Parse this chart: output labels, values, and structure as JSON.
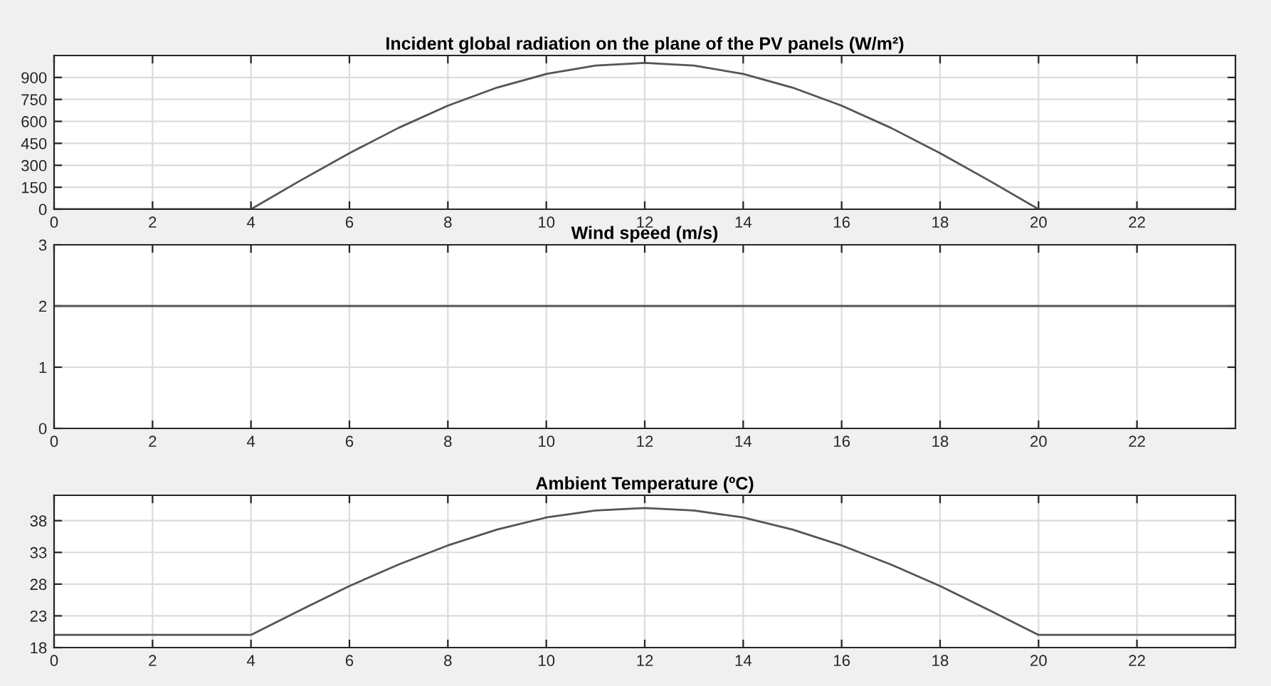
{
  "chart_data": [
    {
      "type": "line",
      "title": "Incident global radiation on the plane of the PV panels (W/m²)",
      "x": [
        0,
        1,
        2,
        3,
        4,
        5,
        6,
        7,
        8,
        9,
        10,
        11,
        12,
        13,
        14,
        15,
        16,
        17,
        18,
        19,
        20,
        21,
        22,
        23,
        24
      ],
      "series": [
        {
          "color": "#555555",
          "values": [
            0,
            0,
            0,
            0,
            0,
            195,
            383,
            556,
            707,
            831,
            924,
            981,
            1000,
            981,
            924,
            831,
            707,
            556,
            383,
            195,
            0,
            0,
            0,
            0,
            0
          ]
        }
      ],
      "xlim": [
        0,
        24
      ],
      "xticks": [
        0,
        2,
        4,
        6,
        8,
        10,
        12,
        14,
        16,
        18,
        20,
        22
      ],
      "ylim": [
        0,
        1050
      ],
      "yticks": [
        0,
        150,
        300,
        450,
        600,
        750,
        900
      ],
      "grid": true
    },
    {
      "type": "line",
      "title": "Wind speed (m/s)",
      "x": [
        0,
        24
      ],
      "series": [
        {
          "color": "#555555",
          "values": [
            2,
            2
          ]
        }
      ],
      "xlim": [
        0,
        24
      ],
      "xticks": [
        0,
        2,
        4,
        6,
        8,
        10,
        12,
        14,
        16,
        18,
        20,
        22
      ],
      "ylim": [
        0,
        3
      ],
      "yticks": [
        0,
        1,
        2,
        3
      ],
      "grid": true
    },
    {
      "type": "line",
      "title": "Ambient Temperature (ºC)",
      "x": [
        0,
        1,
        2,
        3,
        4,
        5,
        6,
        7,
        8,
        9,
        10,
        11,
        12,
        13,
        14,
        15,
        16,
        17,
        18,
        19,
        20,
        21,
        22,
        23,
        24
      ],
      "series": [
        {
          "color": "#555555",
          "values": [
            20,
            20,
            20,
            20,
            20,
            23.9,
            27.7,
            31.1,
            34.1,
            36.6,
            38.5,
            39.6,
            40,
            39.6,
            38.5,
            36.6,
            34.1,
            31.1,
            27.7,
            23.9,
            20,
            20,
            20,
            20,
            20
          ]
        }
      ],
      "xlim": [
        0,
        24
      ],
      "xticks": [
        0,
        2,
        4,
        6,
        8,
        10,
        12,
        14,
        16,
        18,
        20,
        22
      ],
      "ylim": [
        18,
        42
      ],
      "yticks": [
        18,
        23,
        28,
        33,
        38
      ],
      "grid": true
    }
  ]
}
